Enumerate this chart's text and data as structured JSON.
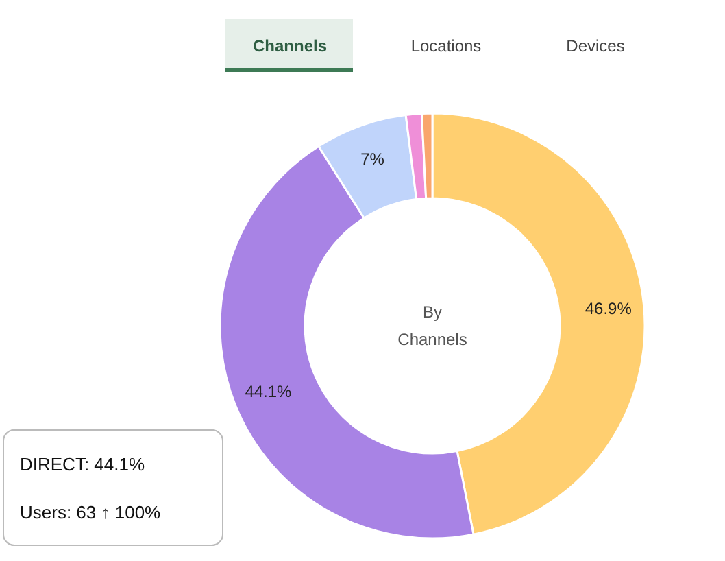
{
  "chart_data": {
    "type": "donut",
    "categories": [
      null,
      null,
      null,
      null,
      null
    ],
    "values": [
      46.9,
      44.1,
      7,
      1.2,
      0.8
    ],
    "colors": [
      "#ffcf70",
      "#a883e5",
      "#c0d4fb",
      "#ef8fd8",
      "#f9a66d"
    ],
    "value_labels": [
      "46.9%",
      "44.1%",
      "7%",
      null,
      null
    ],
    "annotations": [
      "Channels",
      "Locations",
      "Devices",
      "By\nChannels",
      "DIRECT: 44.1%",
      "Users: 63 ↑ 100%"
    ]
  }
}
